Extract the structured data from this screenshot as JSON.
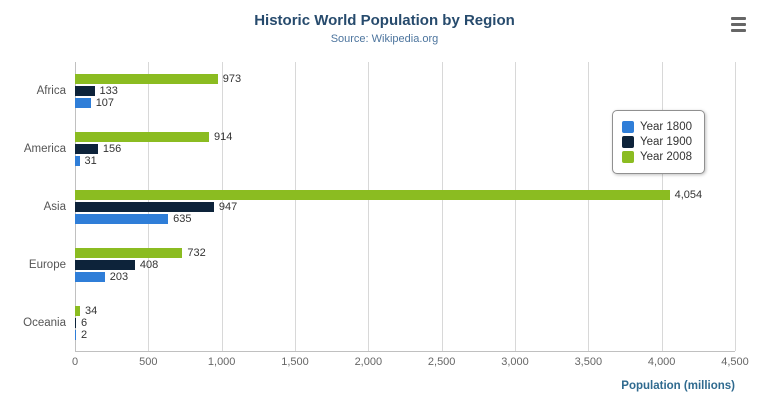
{
  "title": "Historic World Population by Region",
  "subtitle": "Source: Wikipedia.org",
  "export_menu": {
    "icon": "hamburger-icon"
  },
  "colors": {
    "title": "#274b6d",
    "subtitle": "#4d759e",
    "axis_title": "#2f6a8f",
    "gridline": "#d8d8d8",
    "series_1800": "#2f7ed8",
    "series_1900": "#0d233a",
    "series_2008": "#8bbc21"
  },
  "chart_data": {
    "type": "bar",
    "orientation": "horizontal",
    "title": "Historic World Population by Region",
    "subtitle": "Source: Wikipedia.org",
    "categories": [
      "Africa",
      "America",
      "Asia",
      "Europe",
      "Oceania"
    ],
    "series": [
      {
        "name": "Year 1800",
        "color": "#2f7ed8",
        "values": [
          107,
          31,
          635,
          203,
          2
        ]
      },
      {
        "name": "Year 1900",
        "color": "#0d233a",
        "values": [
          133,
          156,
          947,
          408,
          6
        ]
      },
      {
        "name": "Year 2008",
        "color": "#8bbc21",
        "values": [
          973,
          914,
          4054,
          732,
          34
        ]
      }
    ],
    "bar_display_order_top_to_bottom": [
      "Year 2008",
      "Year 1900",
      "Year 1800"
    ],
    "xlabel": "Population (millions)",
    "ylabel": "",
    "xlim": [
      0,
      4500
    ],
    "xticks": [
      0,
      500,
      1000,
      1500,
      2000,
      2500,
      3000,
      3500,
      4000,
      4500
    ],
    "xtick_labels": [
      "0",
      "500",
      "1,000",
      "1,500",
      "2,000",
      "2,500",
      "3,000",
      "3,500",
      "4,000",
      "4,500"
    ],
    "grid": true,
    "legend_position": "right-floating",
    "data_labels": true
  }
}
